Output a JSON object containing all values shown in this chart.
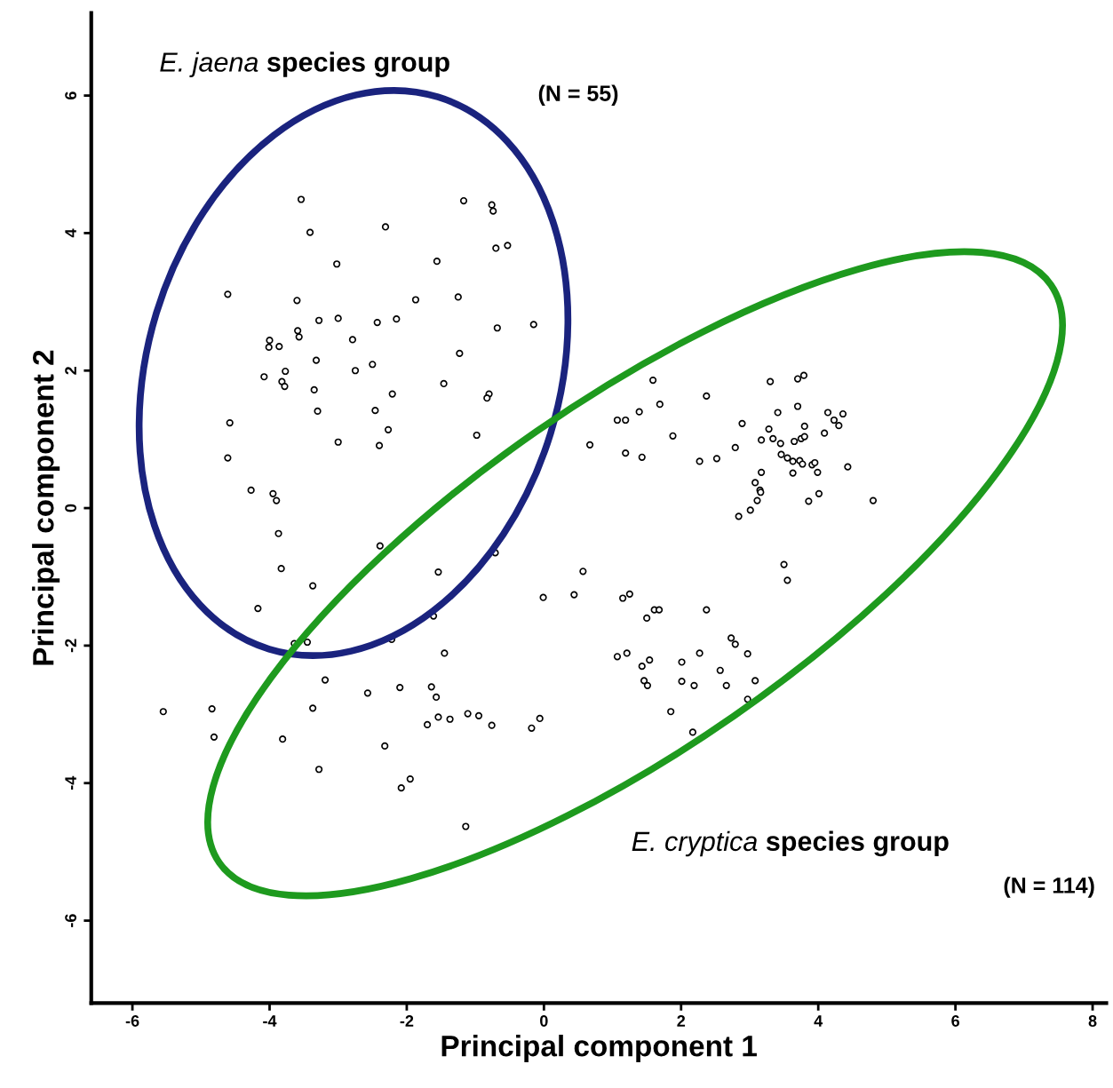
{
  "chart_data": {
    "type": "scatter",
    "xlabel": "Principal component 1",
    "ylabel": "Principal component 2",
    "xlim": [
      -6.6,
      8.2
    ],
    "ylim": [
      -7.2,
      7.2
    ],
    "xticks": [
      -6,
      -4,
      -2,
      0,
      2,
      4,
      6,
      8
    ],
    "yticks": [
      -6,
      -4,
      -2,
      0,
      2,
      4,
      6
    ],
    "grid": false,
    "legend": false,
    "marker": "circle",
    "annotations": [
      "E. jaena species group",
      "(N = 55)",
      "E. cryptica species group",
      "(N = 114)"
    ],
    "series": [
      {
        "color": "#000000",
        "x": [
          -3.54,
          -3.41,
          -2.31,
          -1.17,
          -0.76,
          -0.74,
          -0.7,
          -0.53,
          -4.61,
          -3.02,
          -1.56,
          -3.6,
          -1.87,
          -1.25,
          -3.59,
          -3.57,
          -3.28,
          -3.0,
          -2.43,
          -2.15,
          -0.68,
          -0.15,
          -4.0,
          -4.01,
          -3.86,
          -2.79,
          -1.23,
          -3.32,
          -2.5,
          -3.77,
          -2.75,
          -4.08,
          -3.82,
          -3.78,
          -3.35,
          -1.46,
          -2.21,
          -0.8,
          -0.83,
          -3.3,
          -2.46,
          -4.58,
          -2.27,
          -3.0,
          -2.4,
          -0.98,
          -4.61,
          -4.27,
          -3.95,
          -3.9,
          -3.87,
          -2.39,
          -3.83,
          -0.71,
          -1.54,
          -3.37,
          -4.17,
          -1.61,
          -3.64,
          -3.45,
          -2.22,
          -1.45,
          -3.19,
          -2.1,
          -1.64,
          -2.57,
          -1.57,
          -5.55,
          -4.84,
          -3.37,
          -4.81,
          -3.81,
          -1.54,
          -1.37,
          -1.11,
          -0.95,
          -1.7,
          -0.76,
          -0.06,
          -0.18,
          -2.32,
          -3.28,
          -1.95,
          -2.08,
          -1.14,
          -0.01,
          0.44,
          0.57,
          0.67,
          1.07,
          1.19,
          1.39,
          1.59,
          1.69,
          1.19,
          1.43,
          1.88,
          2.37,
          2.27,
          2.52,
          2.79,
          2.84,
          2.89,
          3.3,
          3.41,
          3.28,
          3.17,
          3.34,
          3.45,
          3.46,
          3.55,
          3.63,
          3.17,
          3.08,
          3.15,
          3.16,
          3.11,
          3.01,
          3.7,
          3.79,
          3.7,
          3.8,
          3.75,
          3.65,
          3.8,
          3.73,
          3.77,
          3.63,
          3.91,
          3.95,
          3.99,
          3.86,
          4.01,
          4.09,
          4.14,
          4.23,
          4.3,
          4.36,
          4.43,
          4.8,
          3.5,
          3.55,
          1.15,
          1.25,
          1.61,
          1.68,
          1.5,
          2.37,
          1.07,
          1.21,
          1.54,
          1.43,
          1.46,
          1.51,
          2.01,
          2.27,
          2.01,
          2.19,
          2.57,
          2.73,
          2.79,
          2.97,
          2.66,
          3.08,
          2.97,
          1.85,
          2.17
        ],
        "values": [
          4.49,
          4.01,
          4.09,
          4.47,
          4.41,
          4.32,
          3.78,
          3.82,
          3.11,
          3.55,
          3.59,
          3.02,
          3.03,
          3.07,
          2.58,
          2.49,
          2.73,
          2.76,
          2.7,
          2.75,
          2.62,
          2.67,
          2.44,
          2.34,
          2.35,
          2.45,
          2.25,
          2.15,
          2.09,
          1.99,
          2.0,
          1.91,
          1.84,
          1.77,
          1.72,
          1.81,
          1.66,
          1.66,
          1.6,
          1.41,
          1.42,
          1.24,
          1.14,
          0.96,
          0.91,
          1.06,
          0.73,
          0.26,
          0.21,
          0.11,
          -0.37,
          -0.55,
          -0.88,
          -0.65,
          -0.93,
          -1.13,
          -1.46,
          -1.57,
          -1.97,
          -1.95,
          -1.91,
          -2.11,
          -2.5,
          -2.61,
          -2.6,
          -2.69,
          -2.75,
          -2.96,
          -2.92,
          -2.91,
          -3.33,
          -3.36,
          -3.04,
          -3.07,
          -2.99,
          -3.02,
          -3.15,
          -3.16,
          -3.06,
          -3.2,
          -3.46,
          -3.8,
          -3.94,
          -4.07,
          -4.63,
          -1.3,
          -1.26,
          -0.92,
          0.92,
          1.28,
          1.28,
          1.4,
          1.86,
          1.51,
          0.8,
          0.74,
          1.05,
          1.63,
          0.68,
          0.72,
          0.88,
          -0.12,
          1.23,
          1.84,
          1.39,
          1.15,
          0.99,
          1.01,
          0.94,
          0.78,
          0.73,
          0.68,
          0.52,
          0.37,
          0.26,
          0.23,
          0.11,
          -0.03,
          1.88,
          1.93,
          1.48,
          1.19,
          1.01,
          0.97,
          1.04,
          0.69,
          0.64,
          0.51,
          0.63,
          0.66,
          0.52,
          0.1,
          0.21,
          1.09,
          1.39,
          1.28,
          1.2,
          1.37,
          0.6,
          0.11,
          -0.82,
          -1.05,
          -1.31,
          -1.25,
          -1.48,
          -1.48,
          -1.6,
          -1.48,
          -2.16,
          -2.11,
          -2.21,
          -2.3,
          -2.51,
          -2.58,
          -2.24,
          -2.11,
          -2.52,
          -2.58,
          -2.36,
          -1.89,
          -1.98,
          -2.12,
          -2.58,
          -2.51,
          -2.78,
          -2.96,
          -3.26
        ]
      }
    ]
  }
}
